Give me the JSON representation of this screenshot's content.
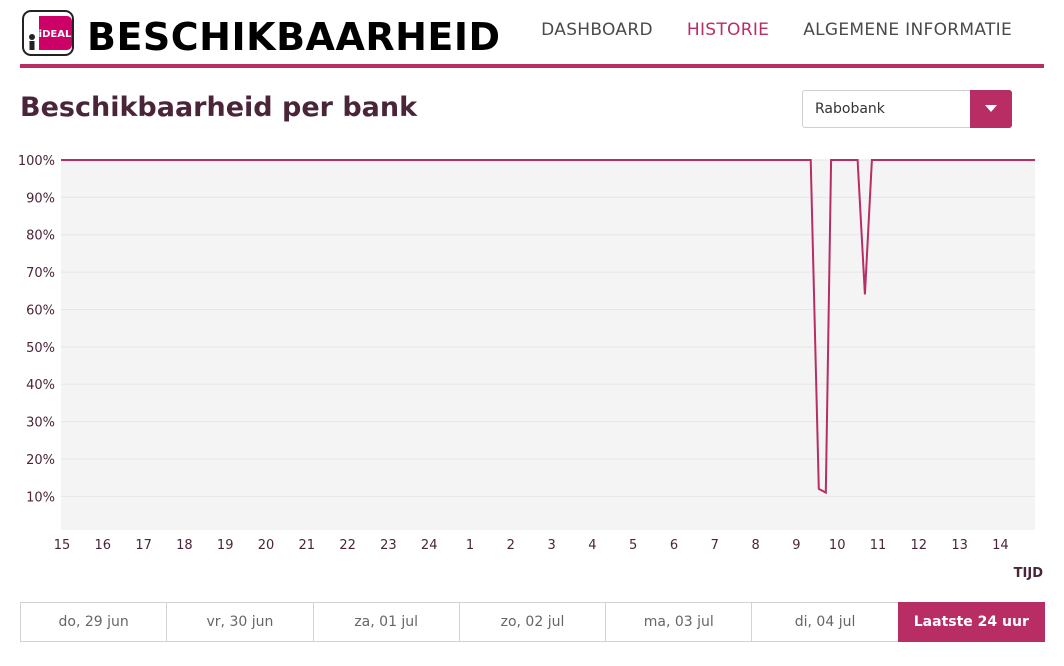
{
  "app": {
    "logo_text": "iDEAL",
    "brand_title": "BESCHIKBAARHEID"
  },
  "nav": [
    {
      "label": "DASHBOARD",
      "active": false
    },
    {
      "label": "HISTORIE",
      "active": true
    },
    {
      "label": "ALGEMENE INFORMATIE",
      "active": false
    }
  ],
  "page": {
    "title": "Beschikbaarheid per bank",
    "bank_select": {
      "value": "Rabobank"
    }
  },
  "colors": {
    "accent": "#b82d64",
    "plot_background": "#f4f4f4",
    "text_dark": "#4a2539"
  },
  "chart_data": {
    "type": "line",
    "xlabel": "TIJD",
    "ylabel": "",
    "y_tick_labels": [
      "100%",
      "90%",
      "80%",
      "70%",
      "60%",
      "50%",
      "40%",
      "30%",
      "20%",
      "10%"
    ],
    "ylim": [
      1,
      100
    ],
    "x_tick_labels": [
      "15",
      "16",
      "17",
      "18",
      "19",
      "20",
      "21",
      "22",
      "23",
      "24",
      "1",
      "2",
      "3",
      "4",
      "5",
      "6",
      "7",
      "8",
      "9",
      "10",
      "11",
      "12",
      "13",
      "14"
    ],
    "x_unit": "hours since 15:00",
    "grid": true,
    "series": [
      {
        "color": "#b82d64",
        "points": [
          {
            "x": 0,
            "y": 100
          },
          {
            "x": 18.35,
            "y": 100
          },
          {
            "x": 18.55,
            "y": 12
          },
          {
            "x": 18.72,
            "y": 11
          },
          {
            "x": 18.85,
            "y": 100
          },
          {
            "x": 19.5,
            "y": 100
          },
          {
            "x": 19.68,
            "y": 64
          },
          {
            "x": 19.85,
            "y": 100
          },
          {
            "x": 23.85,
            "y": 100
          }
        ]
      }
    ]
  },
  "date_tabs": [
    {
      "label": "do, 29 jun",
      "active": false
    },
    {
      "label": "vr, 30 jun",
      "active": false
    },
    {
      "label": "za, 01 jul",
      "active": false
    },
    {
      "label": "zo, 02 jul",
      "active": false
    },
    {
      "label": "ma, 03 jul",
      "active": false
    },
    {
      "label": "di, 04 jul",
      "active": false
    },
    {
      "label": "Laatste 24 uur",
      "active": true
    }
  ]
}
